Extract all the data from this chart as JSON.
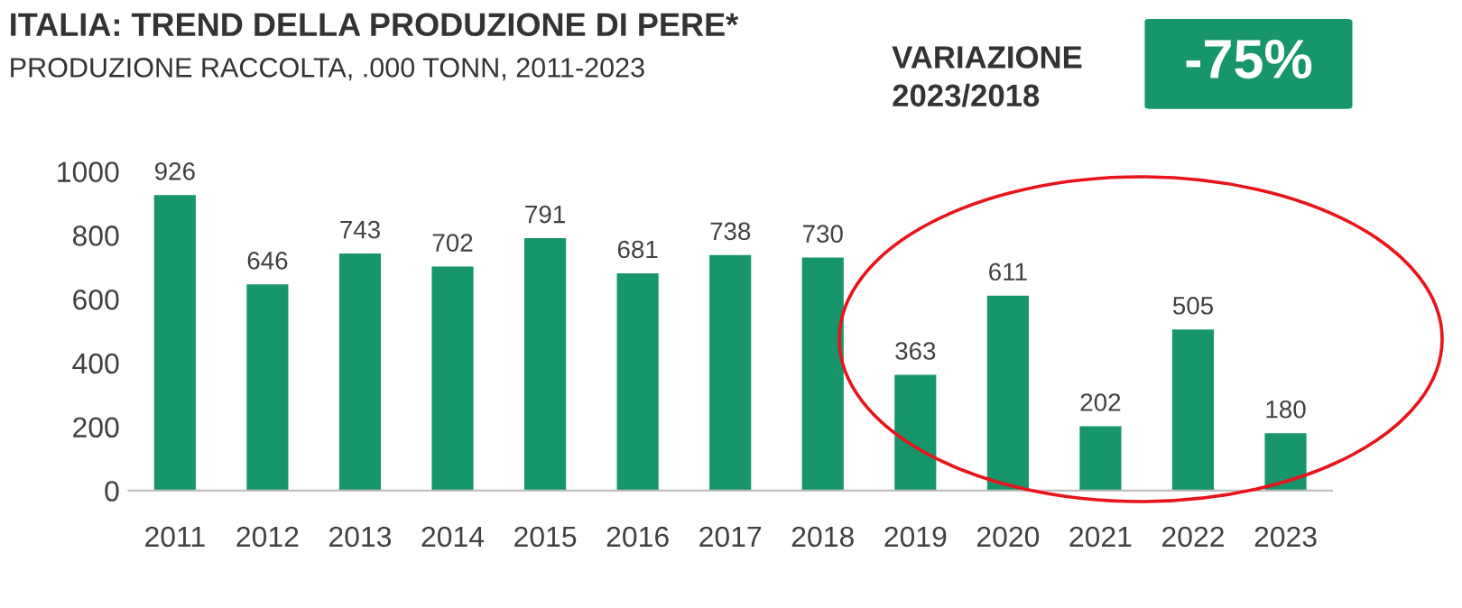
{
  "chart_data": {
    "type": "bar",
    "title": "ITALIA: TREND DELLA PRODUZIONE DI PERE*",
    "subtitle": "PRODUZIONE RACCOLTA, .000 TONN, 2011-2023",
    "categories": [
      "2011",
      "2012",
      "2013",
      "2014",
      "2015",
      "2016",
      "2017",
      "2018",
      "2019",
      "2020",
      "2021",
      "2022",
      "2023"
    ],
    "values": [
      926,
      646,
      743,
      702,
      791,
      681,
      738,
      730,
      363,
      611,
      202,
      505,
      180
    ],
    "color": "#17956b",
    "ylim": [
      0,
      1000
    ],
    "yticks": [
      0,
      200,
      400,
      600,
      800,
      1000
    ],
    "grid": false,
    "data_labels": true,
    "annotations": [
      "VARIAZIONE\n2023/2018",
      "-75%"
    ]
  }
}
